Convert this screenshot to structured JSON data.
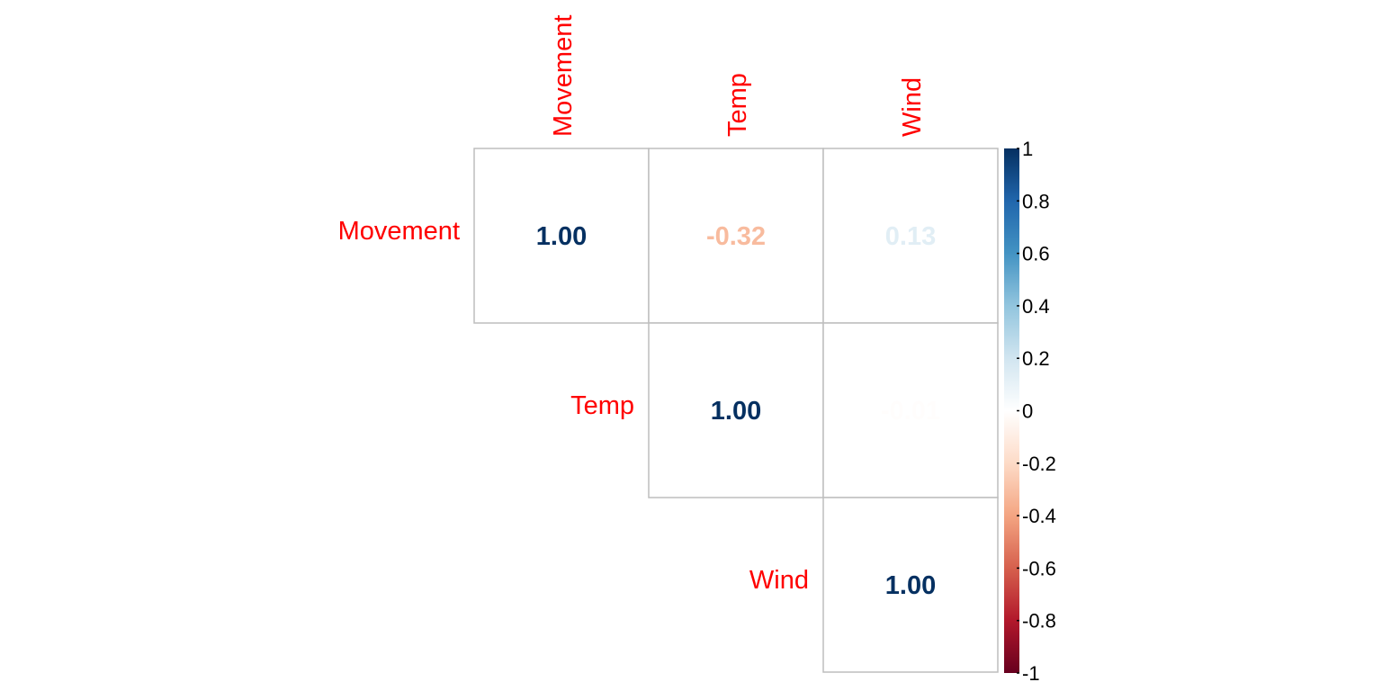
{
  "chart_data": {
    "type": "heatmap",
    "variables": [
      "Movement",
      "Temp",
      "Wind"
    ],
    "layout": "upper-triangle",
    "cells": [
      {
        "row": "Movement",
        "col": "Movement",
        "value": 1.0,
        "label": "1.00"
      },
      {
        "row": "Movement",
        "col": "Temp",
        "value": -0.32,
        "label": "-0.32"
      },
      {
        "row": "Movement",
        "col": "Wind",
        "value": 0.13,
        "label": "0.13"
      },
      {
        "row": "Temp",
        "col": "Temp",
        "value": 1.0,
        "label": "1.00"
      },
      {
        "row": "Temp",
        "col": "Wind",
        "value": -0.01,
        "label": "-0.01"
      },
      {
        "row": "Wind",
        "col": "Wind",
        "value": 1.0,
        "label": "1.00"
      }
    ],
    "colorbar": {
      "range": [
        -1,
        1
      ],
      "ticks": [
        "1",
        "0.8",
        "0.6",
        "0.4",
        "0.2",
        "0",
        "-0.2",
        "-0.4",
        "-0.6",
        "-0.8",
        "-1"
      ],
      "placement": "right",
      "colors": [
        "#67001F",
        "#B2182B",
        "#D6604D",
        "#F4A582",
        "#FDDBC7",
        "#FFFFFF",
        "#D1E5F0",
        "#92C5DE",
        "#4393C3",
        "#2166AC",
        "#053061"
      ]
    },
    "label_color": "#FF0000",
    "grid_color": "#BEBEBE"
  }
}
